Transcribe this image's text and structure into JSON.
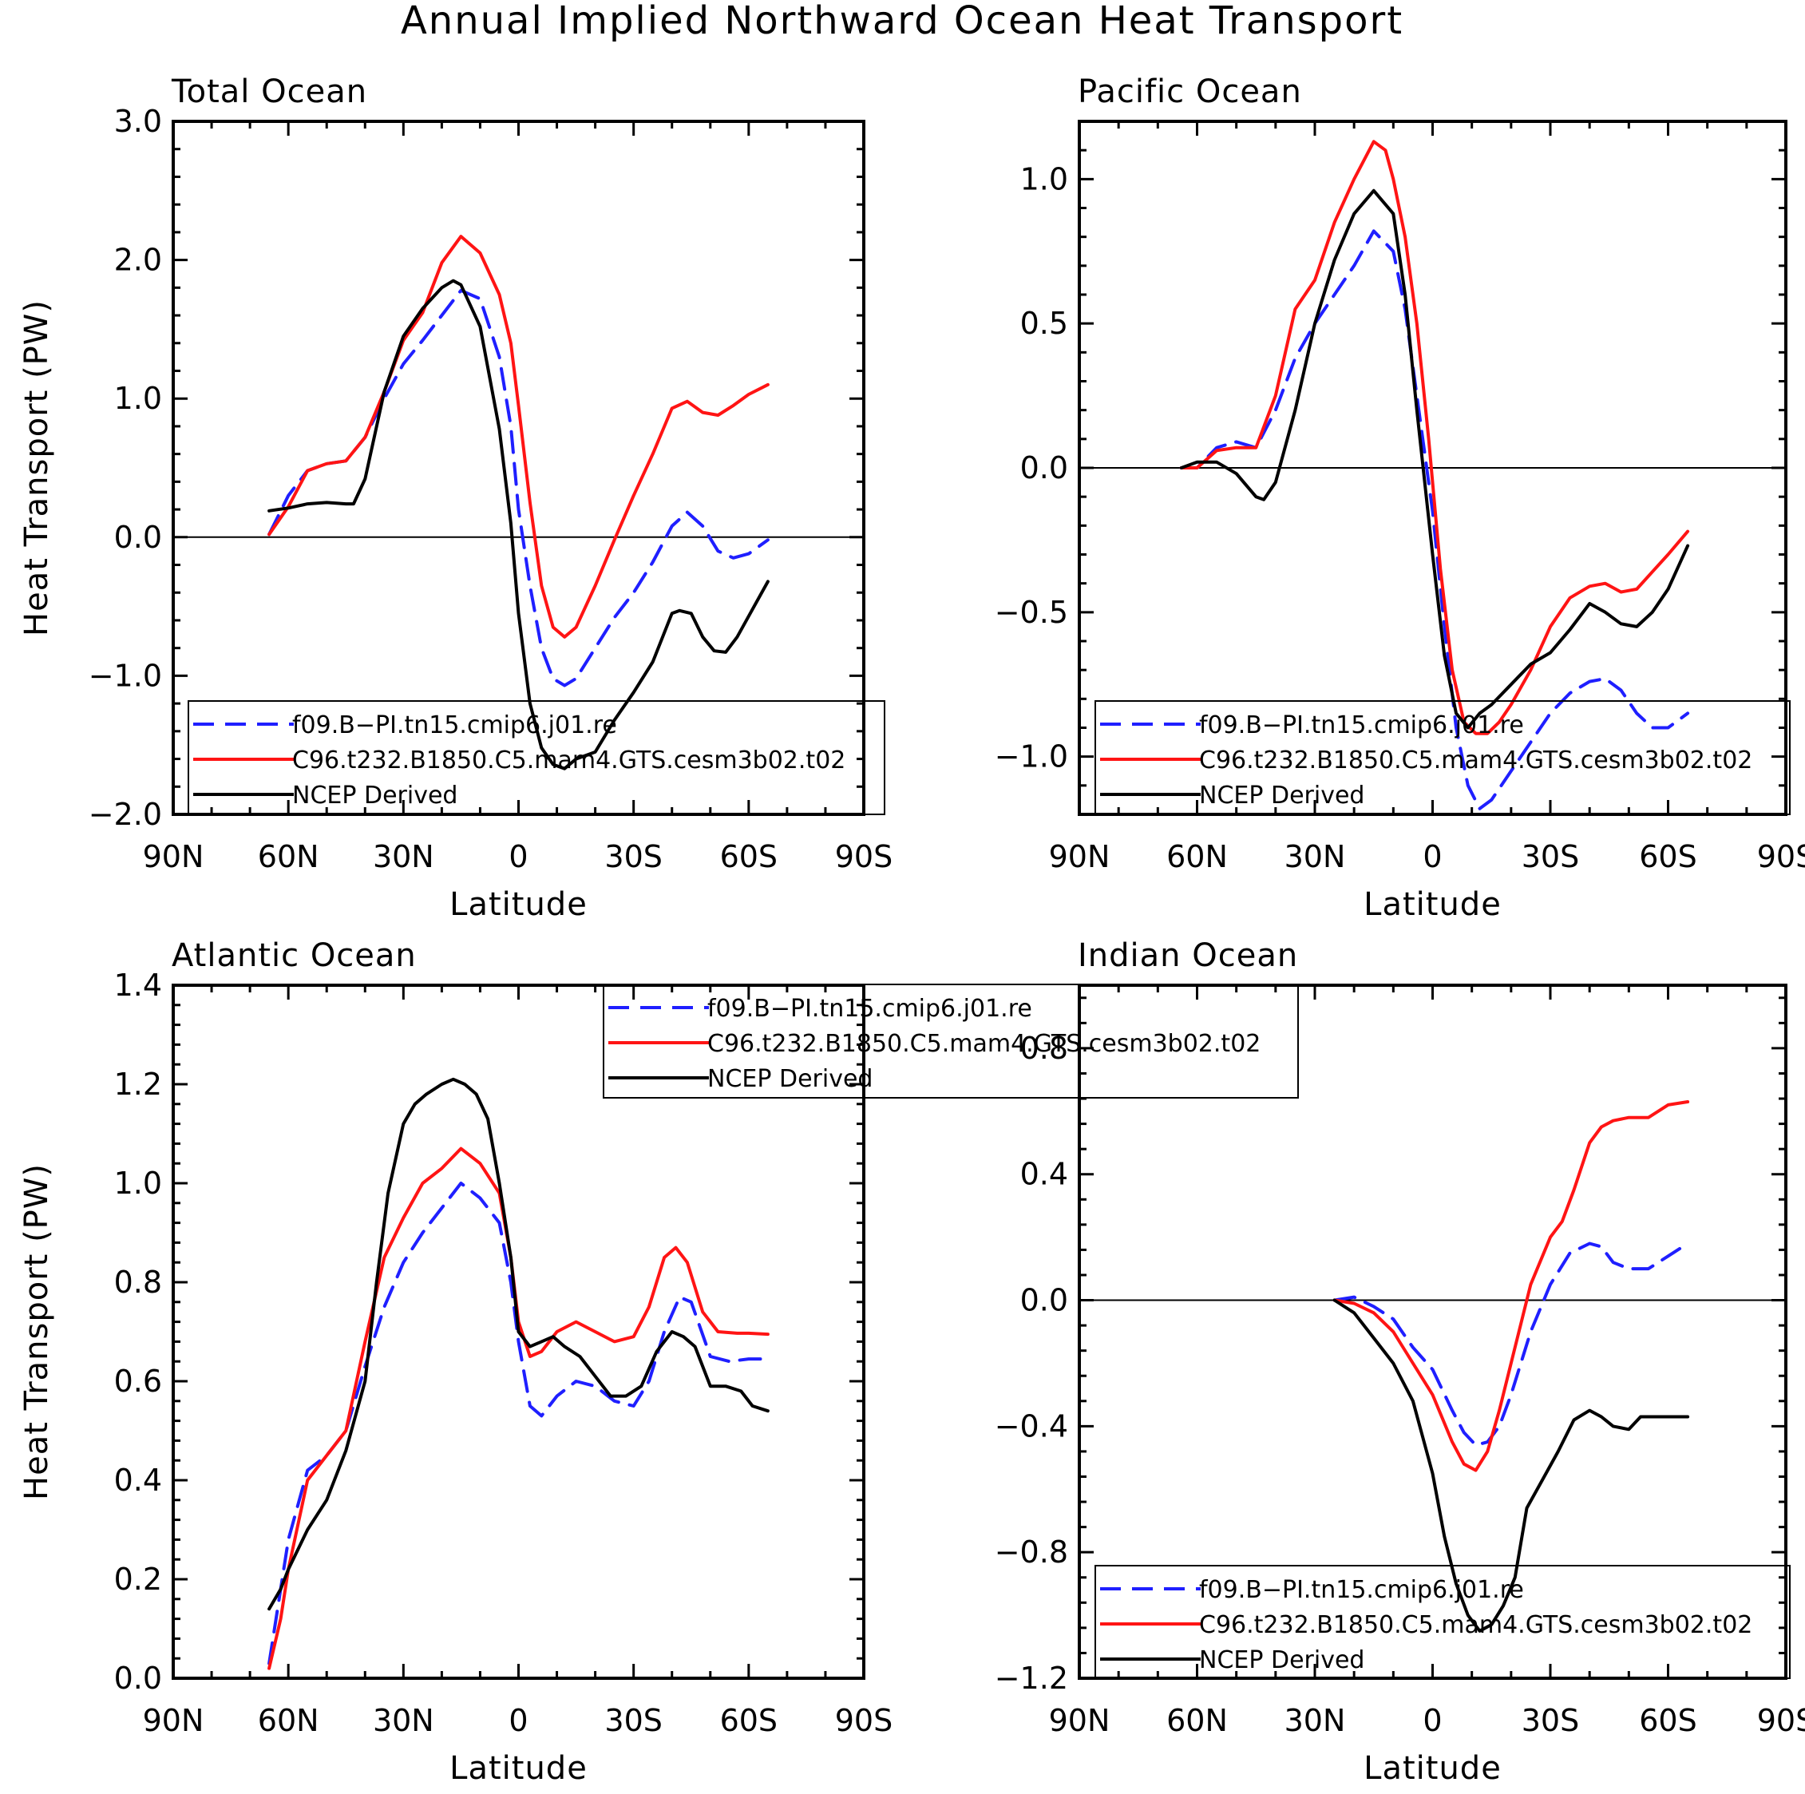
{
  "suptitle": "Annual Implied Northward Ocean Heat Transport",
  "colors": {
    "blue": "#1f1fff",
    "red": "#ff1414",
    "black": "#000000"
  },
  "legend_entries": [
    {
      "label": "f09.B−PI.tn15.cmip6.j01.re",
      "color": "#1f1fff",
      "dash": true
    },
    {
      "label": "C96.t232.B1850.C5.mam4.GTS.cesm3b02.t02",
      "color": "#ff1414",
      "dash": false
    },
    {
      "label": "NCEP Derived",
      "color": "#000000",
      "dash": false
    }
  ],
  "chart_data": [
    {
      "type": "line",
      "title": "Total Ocean",
      "xlabel": "Latitude",
      "ylabel": "Heat Transport (PW)",
      "xlim": [
        90,
        -90
      ],
      "ylim": [
        -2.0,
        3.0
      ],
      "x_ticks": [
        90,
        60,
        30,
        0,
        -30,
        -60,
        -90
      ],
      "x_tick_labels": [
        "90N",
        "60N",
        "30N",
        "0",
        "30S",
        "60S",
        "90S"
      ],
      "y_ticks": [
        -2.0,
        -1.0,
        0.0,
        1.0,
        2.0,
        3.0
      ],
      "y_tick_labels": [
        "−2.0",
        "−1.0",
        "0.0",
        "1.0",
        "2.0",
        "3.0"
      ],
      "legend": "lower-right",
      "series": [
        {
          "name": "f09.B−PI.tn15.cmip6.j01.re",
          "x": [
            65,
            60,
            55,
            50,
            45,
            40,
            35,
            30,
            25,
            20,
            15,
            10,
            5,
            2,
            0,
            -3,
            -6,
            -9,
            -12,
            -15,
            -20,
            -25,
            -30,
            -35,
            -40,
            -44,
            -48,
            -52,
            -56,
            -60,
            -65
          ],
          "y": [
            0.02,
            0.3,
            0.48,
            0.53,
            0.55,
            0.72,
            1.0,
            1.25,
            1.42,
            1.6,
            1.78,
            1.72,
            1.3,
            0.8,
            0.2,
            -0.35,
            -0.8,
            -1.02,
            -1.07,
            -1.02,
            -0.8,
            -0.58,
            -0.4,
            -0.18,
            0.08,
            0.18,
            0.08,
            -0.1,
            -0.15,
            -0.12,
            -0.02
          ]
        },
        {
          "name": "C96.t232.B1850.C5.mam4.GTS.cesm3b02.t02",
          "x": [
            65,
            60,
            55,
            50,
            45,
            40,
            35,
            30,
            25,
            20,
            15,
            10,
            5,
            2,
            0,
            -3,
            -6,
            -9,
            -12,
            -15,
            -20,
            -25,
            -30,
            -35,
            -40,
            -44,
            -48,
            -52,
            -56,
            -60,
            -65
          ],
          "y": [
            0.02,
            0.22,
            0.48,
            0.53,
            0.55,
            0.72,
            1.05,
            1.42,
            1.62,
            1.98,
            2.17,
            2.05,
            1.75,
            1.4,
            0.95,
            0.25,
            -0.35,
            -0.65,
            -0.72,
            -0.65,
            -0.35,
            -0.02,
            0.3,
            0.6,
            0.93,
            0.98,
            0.9,
            0.88,
            0.95,
            1.03,
            1.1
          ]
        },
        {
          "name": "NCEP Derived",
          "x": [
            65,
            60,
            55,
            50,
            45,
            43,
            40,
            35,
            30,
            25,
            20,
            17,
            15,
            10,
            5,
            2,
            0,
            -3,
            -6,
            -9,
            -12,
            -15,
            -20,
            -25,
            -30,
            -35,
            -40,
            -42,
            -45,
            -48,
            -51,
            -54,
            -57,
            -60,
            -65
          ],
          "y": [
            0.19,
            0.21,
            0.24,
            0.25,
            0.24,
            0.24,
            0.42,
            1.05,
            1.45,
            1.65,
            1.8,
            1.85,
            1.82,
            1.52,
            0.78,
            0.1,
            -0.55,
            -1.2,
            -1.52,
            -1.64,
            -1.67,
            -1.6,
            -1.55,
            -1.32,
            -1.12,
            -0.9,
            -0.55,
            -0.53,
            -0.55,
            -0.72,
            -0.82,
            -0.83,
            -0.72,
            -0.57,
            -0.32
          ]
        }
      ]
    },
    {
      "type": "line",
      "title": "Pacific Ocean",
      "xlabel": "Latitude",
      "ylabel": "",
      "xlim": [
        90,
        -90
      ],
      "ylim": [
        -1.2,
        1.2
      ],
      "x_ticks": [
        90,
        60,
        30,
        0,
        -30,
        -60,
        -90
      ],
      "x_tick_labels": [
        "90N",
        "60N",
        "30N",
        "0",
        "30S",
        "60S",
        "90S"
      ],
      "y_ticks": [
        -1.0,
        -0.5,
        0.0,
        0.5,
        1.0
      ],
      "y_tick_labels": [
        "−1.0",
        "−0.5",
        "0.0",
        "0.5",
        "1.0"
      ],
      "legend": "lower-right",
      "series": [
        {
          "name": "f09.B−PI.tn15.cmip6.j01.re",
          "x": [
            64,
            60,
            55,
            50,
            45,
            40,
            35,
            30,
            25,
            20,
            15,
            10,
            7,
            4,
            0,
            -3,
            -6,
            -9,
            -12,
            -15,
            -20,
            -25,
            -30,
            -35,
            -40,
            -44,
            -48,
            -52,
            -56,
            -60,
            -65
          ],
          "y": [
            0.0,
            0.0,
            0.07,
            0.09,
            0.07,
            0.2,
            0.38,
            0.5,
            0.6,
            0.7,
            0.82,
            0.75,
            0.55,
            0.25,
            -0.15,
            -0.55,
            -0.9,
            -1.1,
            -1.18,
            -1.15,
            -1.05,
            -0.95,
            -0.85,
            -0.78,
            -0.74,
            -0.73,
            -0.77,
            -0.85,
            -0.9,
            -0.9,
            -0.85
          ]
        },
        {
          "name": "C96.t232.B1850.C5.mam4.GTS.cesm3b02.t02",
          "x": [
            64,
            60,
            55,
            50,
            45,
            40,
            35,
            30,
            25,
            20,
            15,
            12,
            10,
            7,
            4,
            1,
            -2,
            -5,
            -8,
            -11,
            -14,
            -17,
            -20,
            -25,
            -30,
            -35,
            -40,
            -44,
            -48,
            -52,
            -56,
            -60,
            -65
          ],
          "y": [
            0.0,
            0.0,
            0.06,
            0.07,
            0.07,
            0.25,
            0.55,
            0.65,
            0.85,
            1.0,
            1.13,
            1.1,
            1.0,
            0.8,
            0.5,
            0.1,
            -0.35,
            -0.7,
            -0.88,
            -0.92,
            -0.92,
            -0.88,
            -0.82,
            -0.7,
            -0.55,
            -0.45,
            -0.41,
            -0.4,
            -0.43,
            -0.42,
            -0.36,
            -0.3,
            -0.22
          ]
        },
        {
          "name": "NCEP Derived",
          "x": [
            64,
            60,
            55,
            50,
            45,
            43,
            40,
            35,
            30,
            25,
            20,
            15,
            10,
            7,
            4,
            0,
            -3,
            -6,
            -9,
            -12,
            -15,
            -20,
            -25,
            -30,
            -35,
            -40,
            -44,
            -48,
            -52,
            -56,
            -60,
            -65
          ],
          "y": [
            0.0,
            0.02,
            0.02,
            -0.02,
            -0.1,
            -0.11,
            -0.05,
            0.2,
            0.5,
            0.72,
            0.88,
            0.96,
            0.88,
            0.6,
            0.2,
            -0.3,
            -0.65,
            -0.85,
            -0.9,
            -0.85,
            -0.82,
            -0.75,
            -0.68,
            -0.64,
            -0.56,
            -0.47,
            -0.5,
            -0.54,
            -0.55,
            -0.5,
            -0.42,
            -0.27
          ]
        }
      ]
    },
    {
      "type": "line",
      "title": "Atlantic Ocean",
      "xlabel": "Latitude",
      "ylabel": "Heat Transport (PW)",
      "xlim": [
        90,
        -90
      ],
      "ylim": [
        0.0,
        1.4
      ],
      "x_ticks": [
        90,
        60,
        30,
        0,
        -30,
        -60,
        -90
      ],
      "x_tick_labels": [
        "90N",
        "60N",
        "30N",
        "0",
        "30S",
        "60S",
        "90S"
      ],
      "y_ticks": [
        0.0,
        0.2,
        0.4,
        0.6,
        0.8,
        1.0,
        1.2,
        1.4
      ],
      "y_tick_labels": [
        "0.0",
        "0.2",
        "0.4",
        "0.6",
        "0.8",
        "1.0",
        "1.2",
        "1.4"
      ],
      "legend": "top-center",
      "series": [
        {
          "name": "f09.B−PI.tn15.cmip6.j01.re",
          "x": [
            65,
            60,
            55,
            50,
            45,
            40,
            35,
            30,
            25,
            20,
            15,
            10,
            5,
            2,
            0,
            -3,
            -6,
            -10,
            -15,
            -20,
            -25,
            -30,
            -34,
            -38,
            -42,
            -45,
            -50,
            -55,
            -60,
            -65
          ],
          "y": [
            0.03,
            0.28,
            0.42,
            0.45,
            0.5,
            0.63,
            0.75,
            0.84,
            0.9,
            0.95,
            1.0,
            0.97,
            0.92,
            0.8,
            0.68,
            0.55,
            0.53,
            0.57,
            0.6,
            0.59,
            0.56,
            0.55,
            0.6,
            0.7,
            0.77,
            0.76,
            0.65,
            0.64,
            0.645,
            0.645
          ]
        },
        {
          "name": "C96.t232.B1850.C5.mam4.GTS.cesm3b02.t02",
          "x": [
            65,
            62,
            60,
            55,
            50,
            45,
            40,
            35,
            30,
            25,
            20,
            15,
            10,
            5,
            2,
            0,
            -3,
            -6,
            -10,
            -15,
            -20,
            -25,
            -30,
            -34,
            -38,
            -41,
            -44,
            -48,
            -52,
            -57,
            -60,
            -65
          ],
          "y": [
            0.02,
            0.12,
            0.22,
            0.4,
            0.45,
            0.5,
            0.68,
            0.85,
            0.93,
            1.0,
            1.03,
            1.07,
            1.04,
            0.98,
            0.85,
            0.72,
            0.65,
            0.66,
            0.7,
            0.72,
            0.7,
            0.68,
            0.69,
            0.75,
            0.85,
            0.87,
            0.84,
            0.74,
            0.7,
            0.697,
            0.697,
            0.695
          ]
        },
        {
          "name": "NCEP Derived",
          "x": [
            65,
            62,
            60,
            55,
            50,
            45,
            40,
            37,
            34,
            30,
            27,
            24,
            20,
            17,
            14,
            11,
            8,
            5,
            2,
            0,
            -3,
            -6,
            -9,
            -12,
            -16,
            -20,
            -24,
            -28,
            -32,
            -36,
            -40,
            -43,
            -46,
            -50,
            -54,
            -58,
            -61,
            -65
          ],
          "y": [
            0.14,
            0.18,
            0.22,
            0.3,
            0.36,
            0.46,
            0.6,
            0.8,
            0.98,
            1.12,
            1.16,
            1.18,
            1.2,
            1.21,
            1.2,
            1.18,
            1.13,
            1.0,
            0.85,
            0.7,
            0.67,
            0.68,
            0.69,
            0.67,
            0.65,
            0.61,
            0.57,
            0.57,
            0.59,
            0.66,
            0.7,
            0.69,
            0.67,
            0.59,
            0.59,
            0.58,
            0.55,
            0.54
          ]
        }
      ]
    },
    {
      "type": "line",
      "title": "Indian Ocean",
      "xlabel": "Latitude",
      "ylabel": "",
      "xlim": [
        90,
        -90
      ],
      "ylim": [
        -1.2,
        1.0
      ],
      "x_ticks": [
        90,
        60,
        30,
        0,
        -30,
        -60,
        -90
      ],
      "x_tick_labels": [
        "90N",
        "60N",
        "30N",
        "0",
        "30S",
        "60S",
        "90S"
      ],
      "y_ticks": [
        -1.2,
        -0.8,
        -0.4,
        0.0,
        0.4,
        0.8
      ],
      "y_tick_labels": [
        "−1.2",
        "−0.8",
        "−0.4",
        "0.0",
        "0.4",
        "0.8"
      ],
      "legend": "lower-right",
      "series": [
        {
          "name": "f09.B−PI.tn15.cmip6.j01.re",
          "x": [
            25,
            20,
            15,
            10,
            5,
            0,
            -5,
            -8,
            -11,
            -14,
            -17,
            -20,
            -25,
            -30,
            -35,
            -40,
            -43,
            -46,
            -50,
            -55,
            -60,
            -65
          ],
          "y": [
            0.0,
            0.01,
            -0.02,
            -0.06,
            -0.15,
            -0.22,
            -0.35,
            -0.42,
            -0.46,
            -0.45,
            -0.4,
            -0.3,
            -0.1,
            0.05,
            0.15,
            0.18,
            0.17,
            0.12,
            0.1,
            0.1,
            0.14,
            0.18
          ]
        },
        {
          "name": "C96.t232.B1850.C5.mam4.GTS.cesm3b02.t02",
          "x": [
            25,
            20,
            15,
            10,
            5,
            0,
            -5,
            -8,
            -11,
            -14,
            -17,
            -20,
            -25,
            -30,
            -33,
            -36,
            -40,
            -43,
            -46,
            -50,
            -55,
            -60,
            -65
          ],
          "y": [
            0.0,
            -0.01,
            -0.04,
            -0.1,
            -0.2,
            -0.3,
            -0.45,
            -0.52,
            -0.54,
            -0.48,
            -0.35,
            -0.2,
            0.05,
            0.2,
            0.25,
            0.35,
            0.5,
            0.55,
            0.57,
            0.58,
            0.58,
            0.62,
            0.63
          ]
        },
        {
          "name": "NCEP Derived",
          "x": [
            25,
            20,
            15,
            10,
            5,
            0,
            -3,
            -6,
            -9,
            -12,
            -15,
            -18,
            -21,
            -24,
            -28,
            -32,
            -36,
            -40,
            -43,
            -46,
            -50,
            -53,
            -56,
            -60,
            -65
          ],
          "y": [
            0.0,
            -0.04,
            -0.12,
            -0.2,
            -0.32,
            -0.55,
            -0.75,
            -0.9,
            -1.0,
            -1.05,
            -1.03,
            -0.97,
            -0.88,
            -0.66,
            -0.57,
            -0.48,
            -0.38,
            -0.35,
            -0.37,
            -0.4,
            -0.41,
            -0.37,
            -0.37,
            -0.37,
            -0.37
          ]
        }
      ]
    }
  ]
}
